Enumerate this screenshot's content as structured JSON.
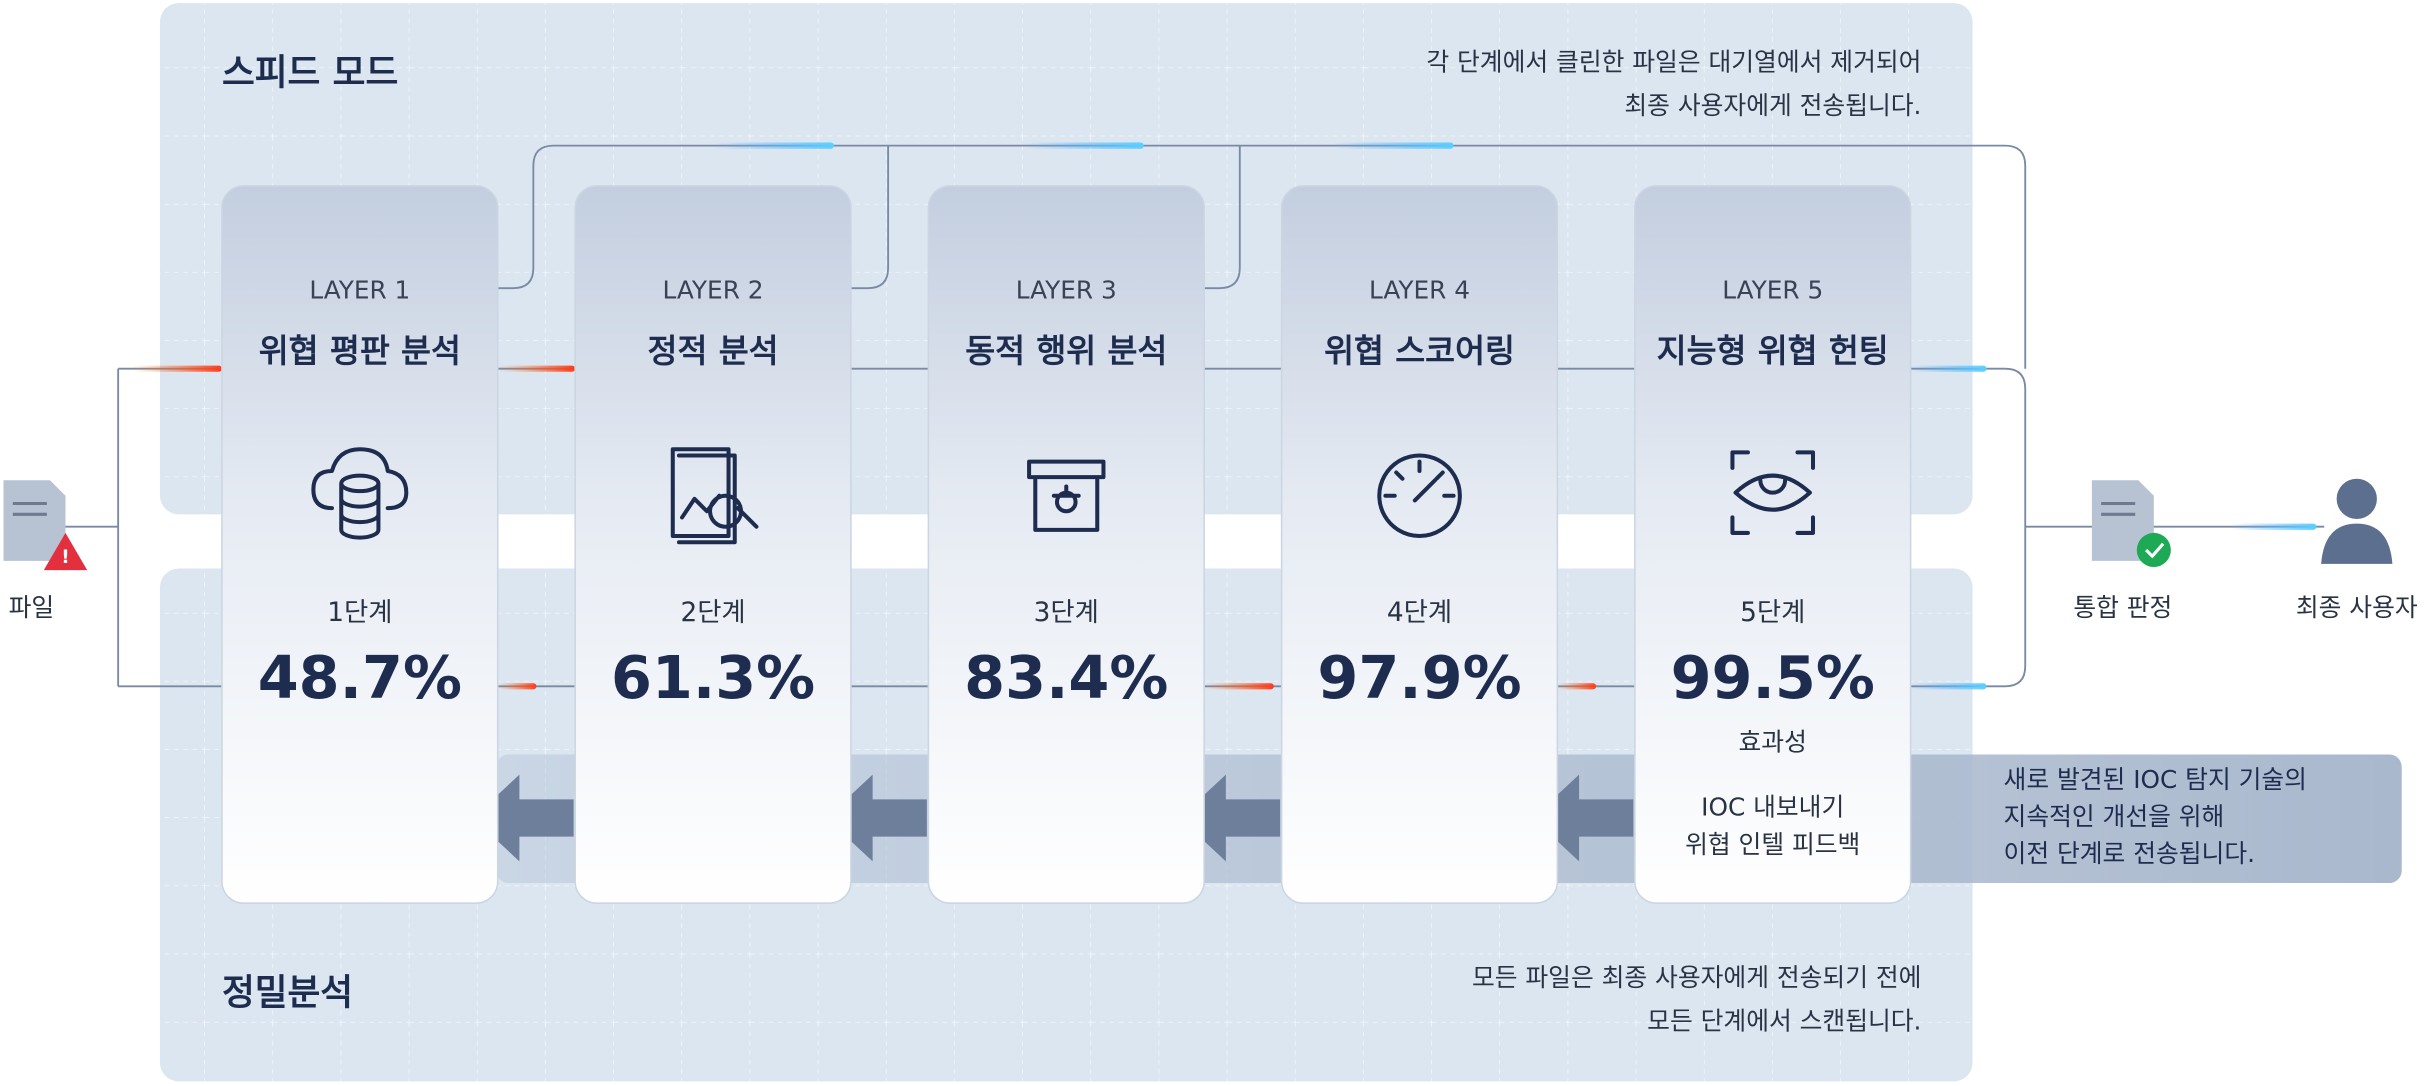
{
  "speed_mode": {
    "title": "스피드 모드",
    "note": [
      "각 단계에서 클린한 파일은 대기열에서 제거되어",
      "최종 사용자에게 전송됩니다."
    ]
  },
  "deep_analysis": {
    "title": "정밀분석",
    "note": [
      "모든 파일은 최종 사용자에게 전송되기 전에",
      "모든 단계에서 스캔됩니다."
    ]
  },
  "layers": [
    {
      "layer": "LAYER 1",
      "name": "위협 평판 분석",
      "stage": "1단계",
      "rate": "48.7%"
    },
    {
      "layer": "LAYER 2",
      "name": "정적 분석",
      "stage": "2단계",
      "rate": "61.3%"
    },
    {
      "layer": "LAYER 3",
      "name": "동적 행위 분석",
      "stage": "3단계",
      "rate": "83.4%"
    },
    {
      "layer": "LAYER 4",
      "name": "위협 스코어링",
      "stage": "4단계",
      "rate": "97.9%"
    },
    {
      "layer": "LAYER 5",
      "name": "지능형 위협 헌팅",
      "stage": "5단계",
      "rate": "99.5%"
    }
  ],
  "effectiveness": "효과성",
  "feedback": [
    "IOC 내보내기",
    "위협 인텔 피드백"
  ],
  "feedback_note": [
    "새로 발견된 IOC 탐지 기술의",
    "지속적인 개선을 위해",
    "이전 단계로 전송됩니다."
  ],
  "nodes": {
    "file": "파일",
    "verdict": "통합 판정",
    "end_user": "최종 사용자"
  }
}
